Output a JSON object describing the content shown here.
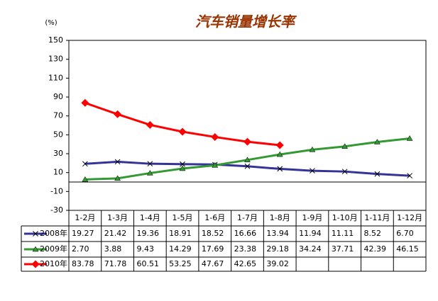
{
  "chart_data": {
    "type": "line",
    "title": "汽车销量增长率",
    "y_label": "(%)",
    "categories": [
      "1-2月",
      "1-3月",
      "1-4月",
      "1-5月",
      "1-6月",
      "1-7月",
      "1-8月",
      "1-9月",
      "1-10月",
      "1-11月",
      "1-12月"
    ],
    "series": [
      {
        "name": "2008年",
        "color": "#333399",
        "marker": "x",
        "values": [
          19.27,
          21.42,
          19.36,
          18.91,
          18.52,
          16.66,
          13.94,
          11.94,
          11.11,
          8.52,
          6.7
        ],
        "value_labels": [
          "19.27",
          "21.42",
          "19.36",
          "18.91",
          "18.52",
          "16.66",
          "13.94",
          "11.94",
          "11.11",
          "8.52",
          "6.70"
        ]
      },
      {
        "name": "2009年",
        "color": "#339933",
        "marker": "triangle",
        "values": [
          2.7,
          3.88,
          9.43,
          14.29,
          17.69,
          23.38,
          29.18,
          34.24,
          37.71,
          42.39,
          46.15
        ],
        "value_labels": [
          "2.70",
          "3.88",
          "9.43",
          "14.29",
          "17.69",
          "23.38",
          "29.18",
          "34.24",
          "37.71",
          "42.39",
          "46.15"
        ]
      },
      {
        "name": "2010年",
        "color": "#ff0000",
        "marker": "diamond",
        "values": [
          83.78,
          71.78,
          60.51,
          53.25,
          47.67,
          42.65,
          39.02,
          null,
          null,
          null,
          null
        ],
        "value_labels": [
          "83.78",
          "71.78",
          "60.51",
          "53.25",
          "47.67",
          "42.65",
          "39.02",
          null,
          null,
          null,
          null
        ]
      }
    ],
    "ylim": [
      -30,
      150
    ],
    "yticks": [
      -30,
      -10,
      10,
      30,
      50,
      70,
      90,
      110,
      130,
      150
    ]
  }
}
